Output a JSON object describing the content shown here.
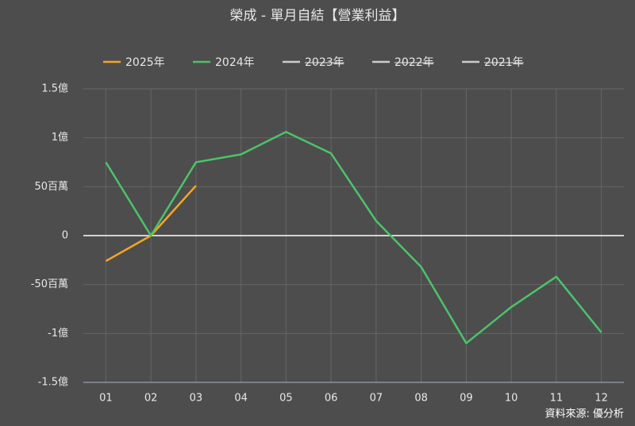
{
  "chart_data": {
    "type": "line",
    "title": "榮成 - 單月自結【營業利益】",
    "categories": [
      "01",
      "02",
      "03",
      "04",
      "05",
      "06",
      "07",
      "08",
      "09",
      "10",
      "11",
      "12"
    ],
    "series": [
      {
        "name": "2025年",
        "color": "#f5a623",
        "values": [
          -26,
          0,
          51,
          null,
          null,
          null,
          null,
          null,
          null,
          null,
          null,
          null
        ]
      },
      {
        "name": "2024年",
        "color": "#4cc36a",
        "values": [
          75,
          0,
          75,
          83,
          106,
          84,
          15,
          -32,
          -110,
          -73,
          -42,
          -99
        ]
      },
      {
        "name": "2023年",
        "color": "#cccccc",
        "hidden": true,
        "values": [
          null,
          null,
          null,
          null,
          null,
          null,
          null,
          null,
          null,
          null,
          null,
          null
        ]
      },
      {
        "name": "2022年",
        "color": "#cccccc",
        "hidden": true,
        "values": [
          null,
          null,
          null,
          null,
          null,
          null,
          null,
          null,
          null,
          null,
          null,
          null
        ]
      },
      {
        "name": "2021年",
        "color": "#cccccc",
        "hidden": true,
        "values": [
          null,
          null,
          null,
          null,
          null,
          null,
          null,
          null,
          null,
          null,
          null,
          null
        ]
      }
    ],
    "ylim": [
      -150,
      150
    ],
    "yticks": [
      {
        "value": -150,
        "label": "-1.5億"
      },
      {
        "value": -100,
        "label": "-1億"
      },
      {
        "value": -50,
        "label": "-50百萬"
      },
      0,
      {
        "value": 50,
        "label": "50百萬"
      },
      {
        "value": 100,
        "label": "1億"
      },
      {
        "value": 150,
        "label": "1.5億"
      }
    ],
    "grid": true,
    "legend": "top",
    "source": "資料來源: 優分析"
  }
}
